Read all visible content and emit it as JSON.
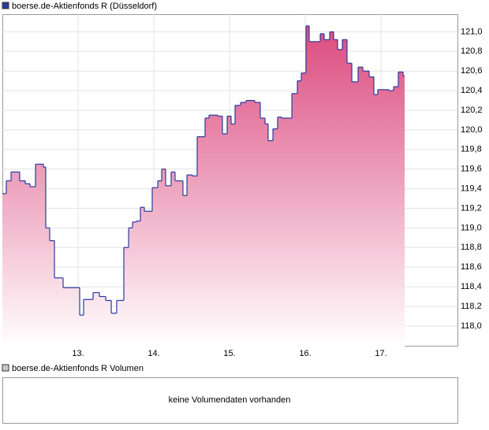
{
  "chart_data": [
    {
      "type": "step-area",
      "legend": "boerse.de-Aktienfonds R (Düsseldorf)",
      "color": "#2b3a9e",
      "fill_top": "#dc4a7e",
      "fill_bottom": "#ffffff",
      "x": [
        12.0,
        12.052,
        12.115,
        12.229,
        12.302,
        12.365,
        12.438,
        12.542,
        12.573,
        12.625,
        12.688,
        12.802,
        12.885,
        13.021,
        13.073,
        13.198,
        13.281,
        13.365,
        13.438,
        13.51,
        13.604,
        13.667,
        13.719,
        13.771,
        13.823,
        13.875,
        13.979,
        14.052,
        14.104,
        14.156,
        14.229,
        14.281,
        14.344,
        14.385,
        14.438,
        14.51,
        14.573,
        14.677,
        14.729,
        14.844,
        14.906,
        14.969,
        15.021,
        15.073,
        15.146,
        15.219,
        15.333,
        15.406,
        15.469,
        15.51,
        15.573,
        15.635,
        15.688,
        15.823,
        15.896,
        15.948,
        16.01,
        16.052,
        16.198,
        16.25,
        16.323,
        16.375,
        16.427,
        16.49,
        16.552,
        16.615,
        16.698,
        16.76,
        16.844,
        16.906,
        16.958,
        17.104,
        17.167,
        17.229,
        17.292
      ],
      "values": [
        119.35,
        119.48,
        119.57,
        119.48,
        119.45,
        119.42,
        119.65,
        119.62,
        119.0,
        118.87,
        118.49,
        118.39,
        118.39,
        118.11,
        118.27,
        118.34,
        118.3,
        118.26,
        118.13,
        118.26,
        118.8,
        119.0,
        119.06,
        119.07,
        119.21,
        119.17,
        119.41,
        119.48,
        119.6,
        119.43,
        119.57,
        119.48,
        119.48,
        119.33,
        119.54,
        119.53,
        119.93,
        120.12,
        120.15,
        120.14,
        119.96,
        120.14,
        120.06,
        120.25,
        120.28,
        120.3,
        120.28,
        120.12,
        120.06,
        119.89,
        120.01,
        120.13,
        120.12,
        120.37,
        120.5,
        120.58,
        121.06,
        120.9,
        120.98,
        120.92,
        121.0,
        120.92,
        120.82,
        120.92,
        120.68,
        120.49,
        120.64,
        120.6,
        120.54,
        120.36,
        120.41,
        120.4,
        120.44,
        120.59,
        120.55
      ],
      "xlim": [
        12,
        18.01
      ],
      "ylim": [
        117.79,
        121.18
      ],
      "xticks": [
        {
          "value": 13,
          "label": "13."
        },
        {
          "value": 14,
          "label": "14."
        },
        {
          "value": 15,
          "label": "15."
        },
        {
          "value": 16,
          "label": "16."
        },
        {
          "value": 17,
          "label": "17."
        }
      ],
      "yticks": [
        {
          "value": 118,
          "label": "118,0"
        },
        {
          "value": 118.2,
          "label": "118,2"
        },
        {
          "value": 118.4,
          "label": "118,4"
        },
        {
          "value": 118.6,
          "label": "118,6"
        },
        {
          "value": 118.8,
          "label": "118,8"
        },
        {
          "value": 119,
          "label": "119,0"
        },
        {
          "value": 119.2,
          "label": "119,2"
        },
        {
          "value": 119.4,
          "label": "119,4"
        },
        {
          "value": 119.6,
          "label": "119,6"
        },
        {
          "value": 119.8,
          "label": "119,8"
        },
        {
          "value": 120,
          "label": "120,0"
        },
        {
          "value": 120.2,
          "label": "120,2"
        },
        {
          "value": 120.4,
          "label": "120,4"
        },
        {
          "value": 120.6,
          "label": "120,6"
        },
        {
          "value": 120.8,
          "label": "120,8"
        },
        {
          "value": 121,
          "label": "121,0"
        }
      ],
      "grid": true
    },
    {
      "type": "empty",
      "legend": "boerse.de-Aktienfonds R Volumen",
      "color": "#c8c8c8",
      "message": "keine Volumendaten vorhanden"
    }
  ]
}
